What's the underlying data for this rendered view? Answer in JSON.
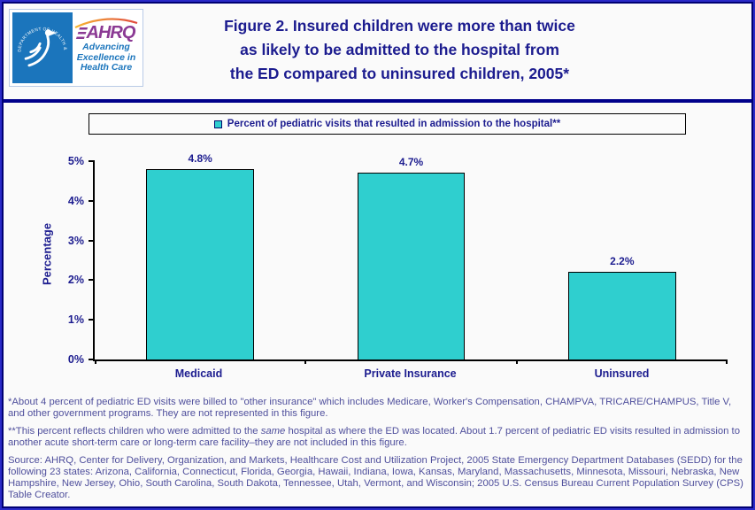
{
  "header": {
    "logo": {
      "hhs_ring_text": "DEPARTMENT OF HEALTH & HUMAN SERVICES • USA",
      "ahrq_acronym": "AHRQ",
      "tagline_line1": "Advancing",
      "tagline_line2": "Excellence in",
      "tagline_line3": "Health Care"
    },
    "title_line1": "Figure 2. Insured children were more than twice",
    "title_line2": "as likely to be admitted to the hospital from",
    "title_line3": "the ED compared to uninsured children, 2005*"
  },
  "legend": {
    "label": "Percent of pediatric visits that resulted in admission to the hospital**"
  },
  "chart_data": {
    "type": "bar",
    "title": "Figure 2. Insured children were more than twice as likely to be admitted to the hospital from the ED compared to uninsured children, 2005*",
    "series_name": "Percent of pediatric visits that resulted in admission to the hospital**",
    "categories": [
      "Medicaid",
      "Private Insurance",
      "Uninsured"
    ],
    "values": [
      4.8,
      4.7,
      2.2
    ],
    "value_labels": [
      "4.8%",
      "4.7%",
      "2.2%"
    ],
    "xlabel": "",
    "ylabel": "Percentage",
    "ylim": [
      0,
      5
    ],
    "ytick_labels": [
      "0%",
      "1%",
      "2%",
      "3%",
      "4%",
      "5%"
    ],
    "grid": false,
    "legend_position": "top",
    "bar_color": "#2fcfcf"
  },
  "notes": {
    "footnote1": "*About 4 percent of pediatric ED visits were billed to \"other insurance\" which includes Medicare, Worker's Compensation, CHAMPVA, TRICARE/CHAMPUS, Title V, and other government programs. They are not represented in this figure.",
    "footnote2_pre": "**This percent reflects children who were admitted to the ",
    "footnote2_italic": "same",
    "footnote2_post": " hospital as where the ED was located. About 1.7 percent of pediatric ED visits resulted in admission to another acute short-term care or long-term care facility–they are not included in this figure.",
    "source": "Source: AHRQ, Center for Delivery, Organization, and Markets, Healthcare Cost and Utilization Project, 2005 State Emergency Department Databases (SEDD) for the following 23 states: Arizona, California, Connecticut, Florida, Georgia, Hawaii, Indiana, Iowa, Kansas, Maryland, Massachusetts, Minnesota, Missouri, Nebraska, New Hampshire, New Jersey, Ohio, South Carolina, South Dakota, Tennessee, Utah, Vermont, and Wisconsin; 2005 U.S. Census Bureau Current Population Survey (CPS) Table Creator."
  },
  "colors": {
    "accent_navy": "#1c1c8f",
    "divider_navy": "#00008b",
    "bar_teal": "#2fcfcf",
    "note_blue": "#4f4f9c",
    "hhs_blue": "#1b75bc",
    "ahrq_purple": "#8b3a94"
  }
}
